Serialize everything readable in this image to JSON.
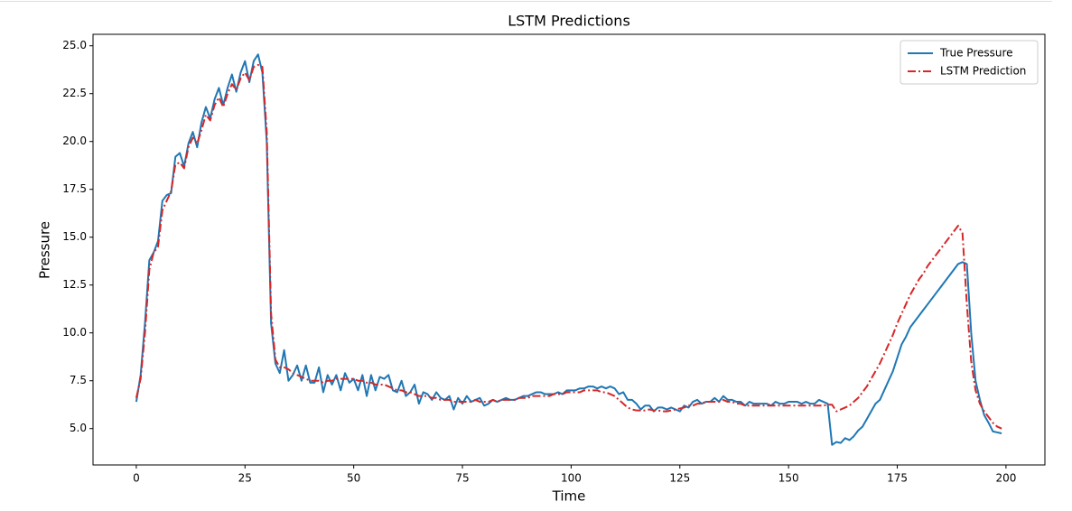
{
  "chart_data": {
    "type": "line",
    "title": "LSTM Predictions",
    "xlabel": "Time",
    "ylabel": "Pressure",
    "x": [
      0,
      1,
      2,
      3,
      4,
      5,
      6,
      7,
      8,
      9,
      10,
      11,
      12,
      13,
      14,
      15,
      16,
      17,
      18,
      19,
      20,
      21,
      22,
      23,
      24,
      25,
      26,
      27,
      28,
      29,
      30,
      31,
      32,
      33,
      34,
      35,
      36,
      37,
      38,
      39,
      40,
      41,
      42,
      43,
      44,
      45,
      46,
      47,
      48,
      49,
      50,
      51,
      52,
      53,
      54,
      55,
      56,
      57,
      58,
      59,
      60,
      61,
      62,
      63,
      64,
      65,
      66,
      67,
      68,
      69,
      70,
      71,
      72,
      73,
      74,
      75,
      76,
      77,
      78,
      79,
      80,
      81,
      82,
      83,
      84,
      85,
      86,
      87,
      88,
      89,
      90,
      91,
      92,
      93,
      94,
      95,
      96,
      97,
      98,
      99,
      100,
      101,
      102,
      103,
      104,
      105,
      106,
      107,
      108,
      109,
      110,
      111,
      112,
      113,
      114,
      115,
      116,
      117,
      118,
      119,
      120,
      121,
      122,
      123,
      124,
      125,
      126,
      127,
      128,
      129,
      130,
      131,
      132,
      133,
      134,
      135,
      136,
      137,
      138,
      139,
      140,
      141,
      142,
      143,
      144,
      145,
      146,
      147,
      148,
      149,
      150,
      151,
      152,
      153,
      154,
      155,
      156,
      157,
      158,
      159,
      160,
      161,
      162,
      163,
      164,
      165,
      166,
      167,
      168,
      169,
      170,
      171,
      172,
      173,
      174,
      175,
      176,
      177,
      178,
      179,
      180,
      181,
      182,
      183,
      184,
      185,
      186,
      187,
      188,
      189,
      190,
      191,
      192,
      193,
      194,
      195,
      196,
      197,
      198,
      199
    ],
    "series": [
      {
        "name": "True Pressure",
        "color": "#1f77b4",
        "linestyle": "solid",
        "values": [
          6.4,
          7.8,
          10.5,
          13.8,
          14.2,
          14.8,
          16.9,
          17.2,
          17.3,
          19.2,
          19.4,
          18.7,
          19.9,
          20.5,
          19.7,
          21.0,
          21.8,
          21.2,
          22.2,
          22.8,
          21.9,
          22.8,
          23.5,
          22.6,
          23.6,
          24.2,
          23.1,
          24.2,
          24.55,
          23.6,
          20.0,
          10.5,
          8.4,
          7.9,
          9.1,
          7.5,
          7.8,
          8.3,
          7.5,
          8.3,
          7.4,
          7.4,
          8.2,
          6.9,
          7.8,
          7.3,
          7.8,
          7.0,
          7.9,
          7.4,
          7.6,
          7.0,
          7.8,
          6.7,
          7.8,
          7.0,
          7.7,
          7.6,
          7.8,
          7.0,
          6.9,
          7.5,
          6.7,
          6.9,
          7.3,
          6.3,
          6.9,
          6.8,
          6.5,
          6.9,
          6.6,
          6.5,
          6.7,
          6.0,
          6.6,
          6.3,
          6.7,
          6.4,
          6.5,
          6.6,
          6.2,
          6.3,
          6.5,
          6.4,
          6.5,
          6.6,
          6.5,
          6.5,
          6.6,
          6.7,
          6.7,
          6.8,
          6.9,
          6.9,
          6.8,
          6.8,
          6.8,
          6.9,
          6.8,
          7.0,
          7.0,
          7.0,
          7.1,
          7.1,
          7.2,
          7.2,
          7.1,
          7.2,
          7.1,
          7.2,
          7.1,
          6.8,
          6.9,
          6.5,
          6.5,
          6.3,
          6.0,
          6.2,
          6.2,
          5.9,
          6.1,
          6.1,
          6.0,
          6.1,
          6.0,
          5.9,
          6.2,
          6.1,
          6.4,
          6.5,
          6.3,
          6.4,
          6.4,
          6.6,
          6.4,
          6.7,
          6.5,
          6.5,
          6.4,
          6.4,
          6.2,
          6.4,
          6.3,
          6.3,
          6.3,
          6.3,
          6.2,
          6.4,
          6.3,
          6.3,
          6.4,
          6.4,
          6.4,
          6.3,
          6.4,
          6.3,
          6.3,
          6.5,
          6.4,
          6.3,
          4.15,
          4.3,
          4.25,
          4.5,
          4.4,
          4.6,
          4.9,
          5.1,
          5.5,
          5.9,
          6.3,
          6.5,
          7.0,
          7.5,
          8.0,
          8.7,
          9.4,
          9.8,
          10.3,
          10.6,
          10.9,
          11.2,
          11.5,
          11.8,
          12.1,
          12.4,
          12.7,
          13.0,
          13.3,
          13.6,
          13.7,
          13.6,
          10.0,
          7.5,
          6.5,
          5.7,
          5.3,
          4.85,
          4.8,
          4.75
        ]
      },
      {
        "name": "LSTM Prediction",
        "color": "#d62728",
        "linestyle": "dashdot",
        "values": [
          6.6,
          7.6,
          10.0,
          13.3,
          14.2,
          14.5,
          16.4,
          16.9,
          17.4,
          18.8,
          18.9,
          18.6,
          19.7,
          20.2,
          19.9,
          20.6,
          21.4,
          21.1,
          21.9,
          22.3,
          21.8,
          22.5,
          23.0,
          22.7,
          23.3,
          23.6,
          23.2,
          23.9,
          24.0,
          23.9,
          20.5,
          11.0,
          8.6,
          8.2,
          8.2,
          8.1,
          7.9,
          7.8,
          7.7,
          7.6,
          7.5,
          7.5,
          7.5,
          7.4,
          7.5,
          7.5,
          7.6,
          7.6,
          7.6,
          7.6,
          7.6,
          7.5,
          7.5,
          7.4,
          7.4,
          7.3,
          7.3,
          7.3,
          7.2,
          7.1,
          7.0,
          7.0,
          6.9,
          6.9,
          6.8,
          6.7,
          6.7,
          6.7,
          6.6,
          6.6,
          6.5,
          6.5,
          6.5,
          6.4,
          6.4,
          6.4,
          6.4,
          6.4,
          6.5,
          6.4,
          6.4,
          6.4,
          6.5,
          6.4,
          6.5,
          6.5,
          6.5,
          6.5,
          6.6,
          6.6,
          6.6,
          6.7,
          6.7,
          6.7,
          6.7,
          6.7,
          6.8,
          6.8,
          6.8,
          6.9,
          6.9,
          6.9,
          6.9,
          7.0,
          7.0,
          7.0,
          7.0,
          6.9,
          6.9,
          6.8,
          6.7,
          6.5,
          6.3,
          6.1,
          6.0,
          5.95,
          5.95,
          5.95,
          6.0,
          5.95,
          5.95,
          5.9,
          5.9,
          5.95,
          6.0,
          6.05,
          6.1,
          6.2,
          6.2,
          6.3,
          6.3,
          6.4,
          6.4,
          6.4,
          6.4,
          6.5,
          6.4,
          6.4,
          6.3,
          6.3,
          6.2,
          6.2,
          6.2,
          6.2,
          6.2,
          6.2,
          6.2,
          6.2,
          6.2,
          6.2,
          6.2,
          6.2,
          6.2,
          6.2,
          6.2,
          6.2,
          6.2,
          6.2,
          6.2,
          6.25,
          6.25,
          5.9,
          6.0,
          6.1,
          6.2,
          6.4,
          6.6,
          6.9,
          7.2,
          7.6,
          8.0,
          8.4,
          8.9,
          9.4,
          9.9,
          10.5,
          11.0,
          11.5,
          12.0,
          12.4,
          12.8,
          13.1,
          13.5,
          13.8,
          14.1,
          14.4,
          14.7,
          15.0,
          15.3,
          15.6,
          15.2,
          11.5,
          8.5,
          7.0,
          6.3,
          5.9,
          5.6,
          5.3,
          5.1,
          5.0
        ]
      }
    ],
    "xlim": [
      -9.95,
      208.95
    ],
    "xticks": [
      0,
      25,
      50,
      75,
      100,
      125,
      150,
      175,
      200
    ],
    "ylim": [
      3.1,
      25.6
    ],
    "yticks": [
      {
        "value": 5,
        "label": "5.0"
      },
      7.5,
      {
        "value": 10,
        "label": "10.0"
      },
      12.5,
      {
        "value": 15,
        "label": "15.0"
      },
      17.5,
      {
        "value": 20,
        "label": "20.0"
      },
      22.5,
      {
        "value": 25,
        "label": "25.0"
      }
    ],
    "grid": false,
    "legend": "upper right"
  }
}
